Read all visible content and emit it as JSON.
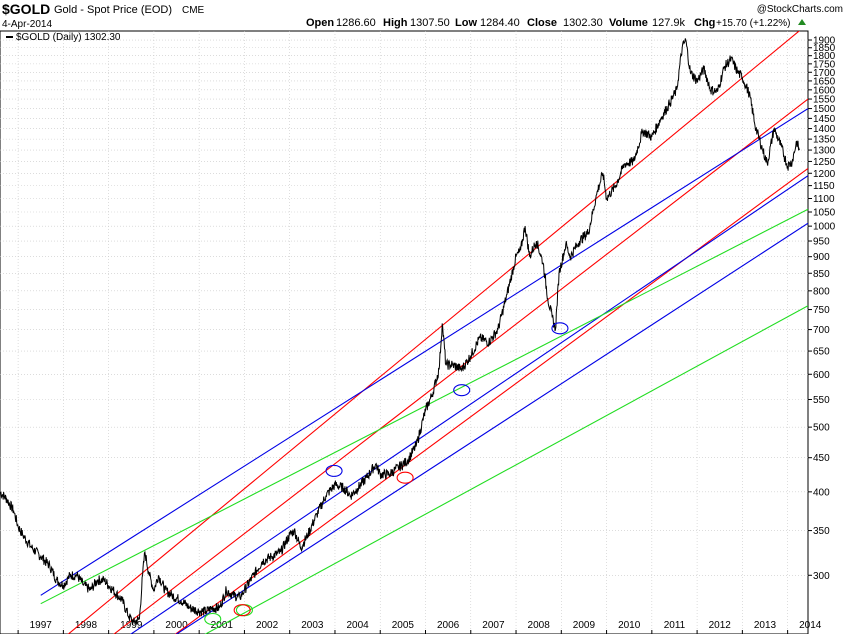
{
  "header": {
    "symbol": "$GOLD",
    "name": "Gold - Spot Price (EOD)",
    "exchange": "CME",
    "date": "4-Apr-2014",
    "watermark": "@StockCharts.com",
    "open_label": "Open",
    "open_value": "1286.60",
    "high_label": "High",
    "high_value": "1307.50",
    "low_label": "Low",
    "low_value": "1284.40",
    "close_label": "Close",
    "close_value": "1302.30",
    "volume_label": "Volume",
    "volume_value": "127.9k",
    "chg_label": "Chg",
    "chg_value": "+15.70 (+1.22%)",
    "up_arrow_icon": "triangle-up-icon"
  },
  "legend": {
    "entry": "$GOLD (Daily) 1302.30"
  },
  "colors": {
    "price": "#000000",
    "red_channel": "#ff0000",
    "blue_channel": "#0000e6",
    "green_channel": "#22dd22",
    "grid": "#c8c8c8",
    "up_arrow": "#228b22"
  },
  "chart_data": {
    "type": "line",
    "title": "$GOLD Gold - Spot Price (EOD) CME",
    "ylog": true,
    "ylim": [
      245,
      1960
    ],
    "xlim": [
      1996.6,
      2014.45
    ],
    "yticks": [
      300,
      350,
      400,
      450,
      500,
      550,
      600,
      650,
      700,
      750,
      800,
      850,
      900,
      950,
      1000,
      1050,
      1100,
      1150,
      1200,
      1250,
      1300,
      1350,
      1400,
      1450,
      1500,
      1550,
      1600,
      1650,
      1700,
      1750,
      1800,
      1850,
      1900
    ],
    "xticks": [
      "1997",
      "1998",
      "1999",
      "2000",
      "2001",
      "2002",
      "2003",
      "2004",
      "2005",
      "2006",
      "2007",
      "2008",
      "2009",
      "2010",
      "2011",
      "2012",
      "2013",
      "2014"
    ],
    "grid": true,
    "legend_position": "top-left",
    "series": [
      {
        "name": "$GOLD (Daily) 1302.30",
        "x": [
          1996.6,
          1996.75,
          1996.9,
          1997.0,
          1997.1,
          1997.3,
          1997.5,
          1997.7,
          1997.85,
          1998.0,
          1998.15,
          1998.3,
          1998.45,
          1998.6,
          1998.75,
          1998.9,
          1999.1,
          1999.3,
          1999.45,
          1999.55,
          1999.68,
          1999.75,
          1999.8,
          1999.9,
          2000.0,
          2000.1,
          2000.25,
          2000.4,
          2000.6,
          2000.8,
          2001.0,
          2001.15,
          2001.3,
          2001.45,
          2001.6,
          2001.75,
          2001.9,
          2002.0,
          2002.2,
          2002.4,
          2002.6,
          2002.8,
          2003.0,
          2003.1,
          2003.25,
          2003.4,
          2003.6,
          2003.8,
          2004.0,
          2004.2,
          2004.35,
          2004.5,
          2004.7,
          2004.9,
          2005.0,
          2005.2,
          2005.4,
          2005.6,
          2005.8,
          2006.0,
          2006.15,
          2006.3,
          2006.37,
          2006.45,
          2006.6,
          2006.8,
          2007.0,
          2007.2,
          2007.4,
          2007.6,
          2007.8,
          2008.0,
          2008.1,
          2008.2,
          2008.3,
          2008.45,
          2008.6,
          2008.7,
          2008.8,
          2008.87,
          2008.95,
          2009.1,
          2009.2,
          2009.4,
          2009.6,
          2009.8,
          2009.92,
          2010.0,
          2010.2,
          2010.4,
          2010.6,
          2010.8,
          2011.0,
          2011.2,
          2011.4,
          2011.55,
          2011.67,
          2011.75,
          2011.85,
          2012.0,
          2012.15,
          2012.3,
          2012.45,
          2012.6,
          2012.75,
          2012.9,
          2013.0,
          2013.15,
          2013.3,
          2013.45,
          2013.55,
          2013.7,
          2013.85,
          2014.0,
          2014.1,
          2014.2,
          2014.26
        ],
        "y": [
          400,
          390,
          375,
          355,
          345,
          330,
          320,
          310,
          295,
          290,
          300,
          300,
          290,
          285,
          295,
          295,
          285,
          275,
          260,
          255,
          258,
          300,
          325,
          300,
          285,
          300,
          285,
          280,
          275,
          268,
          265,
          265,
          268,
          268,
          285,
          280,
          278,
          285,
          300,
          315,
          320,
          325,
          345,
          350,
          330,
          345,
          370,
          395,
          410,
          405,
          395,
          405,
          420,
          440,
          425,
          425,
          435,
          445,
          470,
          530,
          560,
          610,
          715,
          620,
          620,
          610,
          640,
          680,
          670,
          700,
          790,
          900,
          920,
          1000,
          900,
          950,
          880,
          780,
          730,
          700,
          850,
          940,
          900,
          950,
          980,
          1130,
          1200,
          1100,
          1150,
          1240,
          1250,
          1390,
          1360,
          1450,
          1530,
          1600,
          1850,
          1900,
          1700,
          1650,
          1720,
          1600,
          1590,
          1730,
          1780,
          1700,
          1670,
          1580,
          1400,
          1300,
          1240,
          1400,
          1320,
          1230,
          1250,
          1340,
          1300
        ]
      }
    ],
    "trendlines": [
      {
        "color": "red",
        "x": [
          1997.95,
          2014.45
        ],
        "y": [
          240,
          2010
        ]
      },
      {
        "color": "red",
        "x": [
          1998.95,
          2014.45
        ],
        "y": [
          240,
          1550
        ]
      },
      {
        "color": "red",
        "x": [
          2000.3,
          2014.45
        ],
        "y": [
          240,
          1220
        ]
      },
      {
        "color": "blue",
        "x": [
          1997.5,
          2014.45
        ],
        "y": [
          280,
          1500
        ]
      },
      {
        "color": "blue",
        "x": [
          1999.3,
          2014.45
        ],
        "y": [
          240,
          1190
        ]
      },
      {
        "color": "blue",
        "x": [
          2000.3,
          2014.45
        ],
        "y": [
          240,
          1010
        ]
      },
      {
        "color": "green",
        "x": [
          1997.5,
          2014.45
        ],
        "y": [
          272,
          1060
        ]
      },
      {
        "color": "green",
        "x": [
          2000.9,
          2014.45
        ],
        "y": [
          240,
          760
        ]
      }
    ],
    "markers": [
      {
        "color": "green",
        "x": 2001.3,
        "y": 258
      },
      {
        "color": "green",
        "x": 2002.0,
        "y": 266
      },
      {
        "color": "red",
        "x": 2001.95,
        "y": 266
      },
      {
        "color": "blue",
        "x": 2003.98,
        "y": 430
      },
      {
        "color": "red",
        "x": 2005.55,
        "y": 420
      },
      {
        "color": "blue",
        "x": 2006.8,
        "y": 568
      },
      {
        "color": "blue",
        "x": 2008.97,
        "y": 703
      }
    ]
  }
}
